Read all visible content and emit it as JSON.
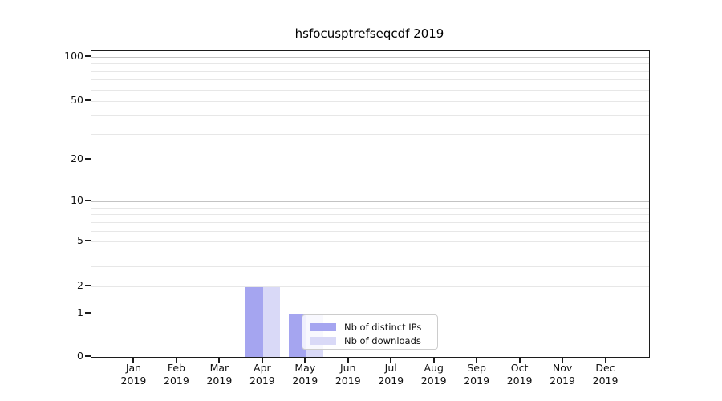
{
  "title": "hsfocusptrefseqcdf 2019",
  "chart_data": {
    "type": "bar",
    "categories": [
      "Jan 2019",
      "Feb 2019",
      "Mar 2019",
      "Apr 2019",
      "May 2019",
      "Jun 2019",
      "Jul 2019",
      "Aug 2019",
      "Sep 2019",
      "Oct 2019",
      "Nov 2019",
      "Dec 2019"
    ],
    "x_months": [
      "Jan",
      "Feb",
      "Mar",
      "Apr",
      "May",
      "Jun",
      "Jul",
      "Aug",
      "Sep",
      "Oct",
      "Nov",
      "Dec"
    ],
    "x_year": "2019",
    "series": [
      {
        "name": "Nb of distinct IPs",
        "color": "#a5a5f0",
        "values": [
          0,
          0,
          0,
          2,
          1,
          0,
          0,
          0,
          0,
          0,
          0,
          0
        ]
      },
      {
        "name": "Nb of downloads",
        "color": "#d9d9f7",
        "values": [
          0,
          0,
          0,
          2,
          1,
          0,
          0,
          0,
          0,
          0,
          0,
          0
        ]
      }
    ],
    "y_axis": {
      "scale": "symlog",
      "labeled_ticks": [
        0,
        1,
        2,
        5,
        10,
        20,
        50,
        100
      ],
      "major_gridlines": [
        1,
        10,
        100
      ],
      "minor_gridlines": [
        2,
        3,
        4,
        5,
        6,
        7,
        8,
        9,
        20,
        30,
        40,
        50,
        60,
        70,
        80,
        90
      ]
    },
    "grid": true,
    "legend_position": "inside lower-center",
    "ylim": [
      0,
      100
    ]
  },
  "colors": {
    "background": "#ffffff",
    "spine": "#1c1c1c",
    "major_grid": "#c3c3c3",
    "minor_grid": "#e7e7e7",
    "bar_distinct_ips": "#a5a5f0",
    "bar_downloads": "#d9d9f7"
  }
}
